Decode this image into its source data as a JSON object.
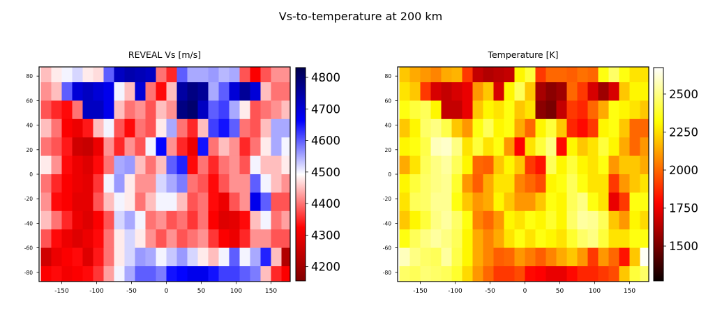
{
  "figure_title": "Vs-to-temperature at 200 km",
  "chart_data": [
    {
      "type": "heatmap",
      "title": "REVEAL Vs [m/s]",
      "colormap": "seismic_r",
      "xlim": [
        -182.5,
        177.5
      ],
      "ylim": [
        -87.5,
        87.5
      ],
      "xticks": [
        "-150",
        "-100",
        "-50",
        "0",
        "50",
        "100",
        "150"
      ],
      "yticks": [
        "80",
        "60",
        "40",
        "20",
        "0",
        "-20",
        "-40",
        "-60",
        "-80"
      ],
      "colorbar_range": [
        4155,
        4831
      ],
      "colorbar_ticks": [
        "4200",
        "4300",
        "4400",
        "4500",
        "4600",
        "4700",
        "4800"
      ],
      "lon_centers": [
        -172.5,
        -157.5,
        -142.5,
        -127.5,
        -112.5,
        -97.5,
        -82.5,
        -67.5,
        -52.5,
        -37.5,
        -22.5,
        -7.5,
        7.5,
        22.5,
        37.5,
        52.5,
        67.5,
        82.5,
        97.5,
        112.5,
        127.5,
        142.5,
        157.5,
        172.5
      ],
      "lat_centers": [
        82.5,
        67.5,
        52.5,
        37.5,
        22.5,
        7.5,
        -7.5,
        -22.5,
        -37.5,
        -52.5,
        -67.5,
        -82.5
      ],
      "values": [
        [
          4450,
          4480,
          4500,
          4520,
          4480,
          4470,
          4600,
          4720,
          4740,
          4730,
          4720,
          4400,
          4350,
          4600,
          4550,
          4550,
          4560,
          4540,
          4550,
          4380,
          4320,
          4380,
          4420,
          4420
        ],
        [
          4420,
          4450,
          4600,
          4700,
          4720,
          4700,
          4680,
          4500,
          4450,
          4700,
          4400,
          4330,
          4450,
          4750,
          4780,
          4760,
          4550,
          4600,
          4700,
          4760,
          4700,
          4450,
          4400,
          4400
        ],
        [
          4380,
          4350,
          4330,
          4400,
          4720,
          4720,
          4680,
          4450,
          4400,
          4420,
          4380,
          4450,
          4420,
          4780,
          4800,
          4720,
          4600,
          4620,
          4550,
          4480,
          4380,
          4400,
          4420,
          4450
        ],
        [
          4450,
          4400,
          4320,
          4300,
          4340,
          4450,
          4500,
          4380,
          4330,
          4400,
          4380,
          4480,
          4550,
          4400,
          4350,
          4450,
          4620,
          4650,
          4600,
          4400,
          4380,
          4450,
          4550,
          4550
        ],
        [
          4400,
          4380,
          4340,
          4260,
          4250,
          4300,
          4420,
          4350,
          4420,
          4380,
          4500,
          4660,
          4420,
          4350,
          4300,
          4650,
          4400,
          4450,
          4420,
          4350,
          4400,
          4480,
          4550,
          4500
        ],
        [
          4480,
          4420,
          4330,
          4300,
          4280,
          4330,
          4400,
          4550,
          4560,
          4450,
          4400,
          4450,
          4600,
          4640,
          4330,
          4400,
          4350,
          4400,
          4420,
          4380,
          4500,
          4450,
          4450,
          4480
        ],
        [
          4400,
          4350,
          4320,
          4300,
          4290,
          4360,
          4500,
          4560,
          4480,
          4420,
          4420,
          4520,
          4550,
          4580,
          4400,
          4380,
          4330,
          4380,
          4420,
          4420,
          4600,
          4500,
          4450,
          4420
        ],
        [
          4420,
          4330,
          4320,
          4290,
          4290,
          4380,
          4450,
          4500,
          4480,
          4400,
          4450,
          4500,
          4500,
          4450,
          4380,
          4400,
          4330,
          4300,
          4380,
          4420,
          4680,
          4600,
          4380,
          4380
        ],
        [
          4450,
          4400,
          4350,
          4300,
          4280,
          4320,
          4380,
          4520,
          4550,
          4500,
          4400,
          4420,
          4380,
          4400,
          4360,
          4400,
          4320,
          4280,
          4290,
          4330,
          4450,
          4500,
          4400,
          4430
        ],
        [
          4380,
          4330,
          4300,
          4280,
          4300,
          4330,
          4400,
          4480,
          4520,
          4480,
          4420,
          4380,
          4420,
          4380,
          4400,
          4420,
          4360,
          4320,
          4300,
          4350,
          4420,
          4420,
          4380,
          4380
        ],
        [
          4260,
          4300,
          4320,
          4330,
          4280,
          4340,
          4400,
          4480,
          4520,
          4560,
          4550,
          4500,
          4530,
          4560,
          4520,
          4480,
          4450,
          4500,
          4600,
          4500,
          4550,
          4640,
          4450,
          4220
        ],
        [
          4320,
          4330,
          4310,
          4320,
          4330,
          4360,
          4430,
          4500,
          4550,
          4600,
          4600,
          4580,
          4650,
          4660,
          4680,
          4680,
          4650,
          4620,
          4620,
          4600,
          4580,
          4450,
          4350,
          4320
        ]
      ]
    },
    {
      "type": "heatmap",
      "title": "Temperature [K]",
      "colormap": "hot",
      "xlim": [
        -182.5,
        177.5
      ],
      "ylim": [
        -87.5,
        87.5
      ],
      "xticks": [
        "-150",
        "-100",
        "-50",
        "0",
        "50",
        "100",
        "150"
      ],
      "yticks": [
        "80",
        "60",
        "40",
        "20",
        "0",
        "-20",
        "-40",
        "-60",
        "-80"
      ],
      "colorbar_range": [
        1271,
        2674
      ],
      "colorbar_ticks": [
        "1500",
        "1750",
        "2000",
        "2250",
        "2500"
      ],
      "lon_centers": [
        -172.5,
        -157.5,
        -142.5,
        -127.5,
        -112.5,
        -97.5,
        -82.5,
        -67.5,
        -52.5,
        -37.5,
        -22.5,
        -7.5,
        7.5,
        22.5,
        37.5,
        52.5,
        67.5,
        82.5,
        97.5,
        112.5,
        127.5,
        142.5,
        157.5,
        172.5
      ],
      "lat_centers": [
        82.5,
        67.5,
        52.5,
        37.5,
        22.5,
        7.5,
        -7.5,
        -22.5,
        -37.5,
        -52.5,
        -67.5,
        -82.5
      ],
      "values": [
        [
          2200,
          2140,
          2100,
          2060,
          2140,
          2160,
          1900,
          1660,
          1620,
          1640,
          1660,
          2300,
          2400,
          1900,
          2000,
          2000,
          1980,
          2020,
          2000,
          2340,
          2460,
          2340,
          2260,
          2260
        ],
        [
          2260,
          2200,
          1900,
          1700,
          1660,
          1700,
          1740,
          2100,
          2200,
          1700,
          2300,
          2440,
          2200,
          1600,
          1540,
          1580,
          2000,
          1900,
          1700,
          1580,
          1700,
          2200,
          2300,
          2300
        ],
        [
          2340,
          2400,
          2440,
          2300,
          1660,
          1660,
          1740,
          2200,
          2300,
          2260,
          2340,
          2200,
          2260,
          1540,
          1500,
          1660,
          1900,
          1860,
          2000,
          2140,
          2340,
          2300,
          2260,
          2200
        ],
        [
          2200,
          2300,
          2460,
          2500,
          2420,
          2200,
          2100,
          2340,
          2440,
          2300,
          2340,
          2140,
          2000,
          2300,
          2400,
          2200,
          1860,
          1800,
          1900,
          2300,
          2340,
          2200,
          2000,
          2000
        ],
        [
          2300,
          2340,
          2420,
          2580,
          2600,
          2500,
          2260,
          2400,
          2260,
          2340,
          2100,
          1780,
          2260,
          2400,
          2500,
          1800,
          2300,
          2200,
          2260,
          2400,
          2300,
          2140,
          2000,
          2100
        ],
        [
          2140,
          2260,
          2440,
          2500,
          2540,
          2440,
          2300,
          2000,
          1980,
          2200,
          2300,
          2200,
          1900,
          1820,
          2440,
          2300,
          2400,
          2300,
          2260,
          2340,
          2100,
          2200,
          2200,
          2140
        ],
        [
          2300,
          2400,
          2460,
          2500,
          2520,
          2380,
          2100,
          1980,
          2140,
          2260,
          2260,
          2060,
          2000,
          1940,
          2300,
          2340,
          2440,
          2340,
          2260,
          2260,
          1900,
          2100,
          2200,
          2260
        ],
        [
          2260,
          2440,
          2460,
          2520,
          2520,
          2340,
          2200,
          2100,
          2140,
          2300,
          2200,
          2100,
          2100,
          2200,
          2340,
          2300,
          2440,
          2500,
          2340,
          2260,
          1740,
          1900,
          2340,
          2340
        ],
        [
          2200,
          2300,
          2400,
          2500,
          2540,
          2460,
          2340,
          2060,
          2000,
          2100,
          2300,
          2260,
          2340,
          2300,
          2380,
          2300,
          2460,
          2540,
          2520,
          2440,
          2200,
          2100,
          2300,
          2240
        ],
        [
          2340,
          2440,
          2500,
          2540,
          2500,
          2440,
          2300,
          2140,
          2060,
          2140,
          2260,
          2340,
          2260,
          2340,
          2300,
          2260,
          2380,
          2460,
          2500,
          2400,
          2260,
          2260,
          2340,
          2340
        ],
        [
          2580,
          2500,
          2460,
          2440,
          2540,
          2420,
          2300,
          2140,
          2060,
          1980,
          2000,
          2100,
          2040,
          1980,
          2060,
          2140,
          2200,
          2100,
          1900,
          2100,
          2000,
          1820,
          2200,
          2660
        ],
        [
          2460,
          2440,
          2480,
          2460,
          2440,
          2380,
          2240,
          2100,
          2000,
          1900,
          1900,
          1940,
          1800,
          1780,
          1740,
          1740,
          1800,
          1860,
          1860,
          1900,
          1940,
          2200,
          2400,
          2460
        ]
      ]
    }
  ]
}
